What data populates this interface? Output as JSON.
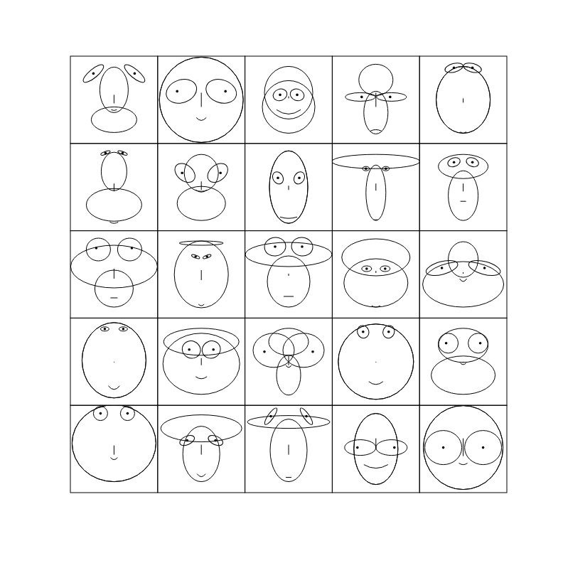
{
  "chart_data": {
    "type": "chernoff_faces",
    "faces": [
      {
        "upper": [
          -14,
          20,
          32
        ],
        "lower": [
          28,
          32,
          18
        ],
        "eyes": [
          29,
          -37,
          18,
          6,
          -40
        ],
        "pupil": [
          0,
          0
        ],
        "nose": [
          -7,
          5
        ],
        "mouth": [
          14,
          4,
          1
        ]
      },
      {
        "upper": [
          0,
          59,
          60
        ],
        "lower": [
          0,
          59,
          60
        ],
        "eyes": [
          28,
          -12,
          22,
          16,
          -20
        ],
        "pupil": [
          -6,
          0
        ],
        "nose": [
          -10,
          10
        ],
        "mouth": [
          25,
          7,
          4
        ]
      },
      {
        "upper": [
          -10,
          34,
          37
        ],
        "lower": [
          10,
          37,
          37
        ],
        "eyes": [
          12,
          -7,
          10,
          8,
          -20
        ],
        "pupil": [
          0,
          0
        ],
        "nose": [
          -5,
          -2
        ],
        "mouth": [
          14,
          17,
          6
        ]
      },
      {
        "upper": [
          -28,
          24,
          22
        ],
        "lower": [
          18,
          17,
          30
        ],
        "eyes": [
          22,
          -4,
          21,
          6,
          0
        ],
        "pupil": [
          2,
          0
        ],
        "nose": [
          -10,
          10
        ],
        "mouth": [
          44,
          8,
          -2
        ]
      },
      {
        "upper": [
          0,
          38,
          47
        ],
        "lower": [
          0,
          38,
          47
        ],
        "eyes": [
          13,
          -45,
          13,
          6,
          -15
        ],
        "pupil": [
          0,
          0
        ],
        "nose": [
          -2,
          4
        ],
        "mouth": [
          45,
          4,
          2
        ]
      },
      {
        "upper": [
          -22,
          18,
          27
        ],
        "lower": [
          25,
          39,
          23
        ],
        "eyes": [
          12,
          -48,
          7,
          2,
          -20
        ],
        "pupil": [
          0,
          0
        ],
        "nose": [
          -5,
          6
        ],
        "mouth": [
          49,
          6,
          2
        ]
      },
      {
        "upper": [
          -20,
          24,
          26
        ],
        "lower": [
          23,
          34,
          24
        ],
        "eyes": [
          23,
          -20,
          16,
          11,
          40
        ],
        "pupil": [
          -4,
          0
        ],
        "nose": [
          -8,
          4
        ],
        "mouth": [
          4,
          8,
          3
        ]
      },
      {
        "upper": [
          0,
          27,
          51
        ],
        "lower": [
          0,
          27,
          51
        ],
        "eyes": [
          15,
          -13,
          7,
          9,
          -30
        ],
        "pupil": [
          0,
          0
        ],
        "nose": [
          -2,
          4
        ],
        "mouth": [
          42,
          12,
          2
        ]
      },
      {
        "upper": [
          -36,
          62,
          10
        ],
        "lower": [
          8,
          14,
          39
        ],
        "eyes": [
          14,
          -26,
          5,
          3,
          0
        ],
        "pupil": [
          0,
          0
        ],
        "nose": [
          -5,
          5
        ],
        "mouth": [
          46,
          3,
          0
        ]
      },
      {
        "upper": [
          -29,
          35,
          17
        ],
        "lower": [
          12,
          21,
          35
        ],
        "eyes": [
          13,
          -35,
          9,
          6,
          -20
        ],
        "pupil": [
          0,
          0
        ],
        "nose": [
          -5,
          6
        ],
        "mouth": [
          20,
          4,
          0
        ]
      },
      {
        "upper": [
          -11,
          61,
          30
        ],
        "lower": [
          20,
          27,
          26
        ],
        "eyes": [
          22,
          -35,
          17,
          16,
          0
        ],
        "pupil": [
          -3,
          -2
        ],
        "nose": [
          -8,
          6
        ],
        "mouth": [
          33,
          5,
          0
        ]
      },
      {
        "upper": [
          -44,
          31,
          3
        ],
        "lower": [
          0,
          38,
          47
        ],
        "eyes": [
          8,
          -25,
          6,
          2,
          20
        ],
        "pupil": [
          0,
          0
        ],
        "nose": [
          -6,
          8
        ],
        "mouth": [
          42,
          4,
          2
        ]
      },
      {
        "upper": [
          -28,
          61,
          17
        ],
        "lower": [
          10,
          30,
          36
        ],
        "eyes": [
          19,
          -39,
          15,
          13,
          -10
        ],
        "pupil": [
          0,
          0
        ],
        "nose": [
          -1,
          2
        ],
        "mouth": [
          31,
          7,
          0
        ]
      },
      {
        "upper": [
          -24,
          48,
          26
        ],
        "lower": [
          12,
          45,
          34
        ],
        "eyes": [
          13,
          -8,
          7,
          4,
          0
        ],
        "pupil": [
          0,
          0
        ],
        "nose": [
          -5,
          -2
        ],
        "mouth": [
          44,
          6,
          2
        ]
      },
      {
        "upper": [
          -21,
          21,
          25
        ],
        "lower": [
          14,
          57,
          32
        ],
        "eyes": [
          30,
          -9,
          23,
          9,
          -15
        ],
        "pupil": [
          0,
          0
        ],
        "nose": [
          -3,
          -1
        ],
        "mouth": [
          6,
          5,
          4
        ]
      },
      {
        "upper": [
          -2,
          45,
          53
        ],
        "lower": [
          -2,
          45,
          53
        ],
        "eyes": [
          13,
          -46,
          6,
          3,
          0
        ],
        "pupil": [
          0,
          0
        ],
        "nose": [
          0,
          1
        ],
        "mouth": [
          34,
          8,
          5
        ]
      },
      {
        "upper": [
          -28,
          53,
          19
        ],
        "lower": [
          3,
          54,
          43
        ],
        "eyes": [
          14,
          -17,
          13,
          12,
          25
        ],
        "pupil": [
          -3,
          0
        ],
        "nose": [
          -5,
          5
        ],
        "mouth": [
          21,
          8,
          3
        ]
      },
      {
        "upper": [
          -28,
          28,
          19
        ],
        "lower": [
          19,
          17,
          28
        ],
        "eyes": [
          21,
          -16,
          29,
          24,
          0
        ],
        "pupil": [
          -13,
          2
        ],
        "nose": [
          -8,
          5
        ],
        "mouth": [
          5,
          4,
          3
        ]
      },
      {
        "upper": [
          0,
          53,
          53
        ],
        "lower": [
          0,
          53,
          53
        ],
        "eyes": [
          18,
          -42,
          8,
          9,
          -20
        ],
        "pupil": [
          0,
          0
        ],
        "nose": [
          0,
          1
        ],
        "mouth": [
          28,
          10,
          4
        ]
      },
      {
        "upper": [
          -23,
          35,
          24
        ],
        "lower": [
          19,
          45,
          27
        ],
        "eyes": [
          21,
          -26,
          14,
          14,
          0
        ],
        "pupil": [
          -3,
          0
        ],
        "nose": [
          0,
          1
        ],
        "mouth": [
          2,
          4,
          2
        ]
      },
      {
        "upper": [
          -8,
          59,
          54
        ],
        "lower": [
          -8,
          59,
          54
        ],
        "eyes": [
          19,
          -50,
          10,
          10,
          0
        ],
        "pupil": [
          0,
          0
        ],
        "nose": [
          -5,
          8
        ],
        "mouth": [
          12,
          5,
          3
        ]
      },
      {
        "upper": [
          -29,
          57,
          19
        ],
        "lower": [
          7,
          26,
          39
        ],
        "eyes": [
          20,
          -12,
          11,
          6,
          -25
        ],
        "pupil": [
          0,
          0
        ],
        "nose": [
          -6,
          8
        ],
        "mouth": [
          35,
          6,
          4
        ]
      },
      {
        "upper": [
          -38,
          58,
          9
        ],
        "lower": [
          2,
          26,
          44
        ],
        "eyes": [
          25,
          -46,
          14,
          4,
          -55
        ],
        "pupil": [
          0,
          0
        ],
        "nose": [
          -6,
          8
        ],
        "mouth": [
          40,
          4,
          0
        ]
      },
      {
        "upper": [
          0,
          31,
          50
        ],
        "lower": [
          0,
          31,
          50
        ],
        "eyes": [
          22,
          -2,
          22,
          11,
          0
        ],
        "pupil": [
          -4,
          0
        ],
        "nose": [
          -15,
          0
        ],
        "mouth": [
          22,
          17,
          5
        ]
      },
      {
        "upper": [
          -2,
          56,
          59
        ],
        "lower": [
          -2,
          56,
          59
        ],
        "eyes": [
          28,
          -2,
          26,
          24,
          0
        ],
        "pupil": [
          0,
          0
        ],
        "nose": [
          -15,
          10
        ],
        "mouth": [
          20,
          6,
          2
        ]
      }
    ]
  }
}
